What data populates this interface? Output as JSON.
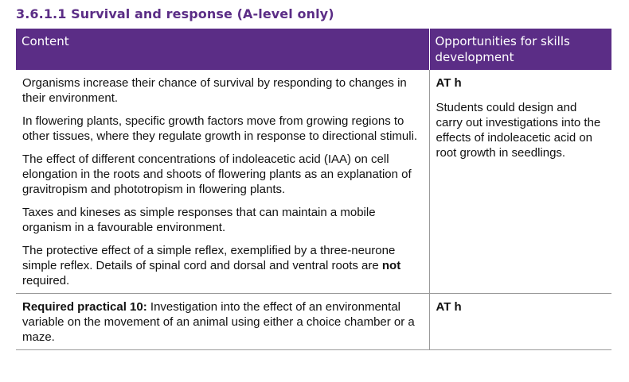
{
  "section_heading": "3.6.1.1 Survival and response (A-level only)",
  "table": {
    "headers": {
      "content": "Content",
      "skills": "Opportunities for skills development"
    },
    "rows": [
      {
        "content": [
          {
            "text": "Organisms increase their chance of survival by responding to changes in their environment."
          },
          {
            "text": "In flowering plants, specific growth factors move from growing regions to other tissues, where they regulate growth in response to directional stimuli."
          },
          {
            "text": "The effect of different concentrations of indoleacetic acid (IAA) on cell elongation in the roots and shoots of flowering plants as an explanation of gravitropism and phototropism in flowering plants."
          },
          {
            "text": "Taxes and kineses as simple responses that can maintain a mobile organism in a favourable environment."
          },
          {
            "before": "The protective effect of a simple reflex, exemplified by a three-neurone simple reflex. Details of spinal cord and dorsal and ventral roots are ",
            "bold": "not",
            "after": " required."
          }
        ],
        "skills": {
          "label": "AT h",
          "text": "Students could design and carry out investigations into the effects of indoleacetic acid on root growth in seedlings."
        }
      },
      {
        "content": [
          {
            "bold": "Required practical 10:",
            "after": " Investigation into the effect of an environmental variable on the movement of an animal using either a choice chamber or a maze."
          }
        ],
        "skills": {
          "label": "AT h"
        }
      }
    ]
  }
}
